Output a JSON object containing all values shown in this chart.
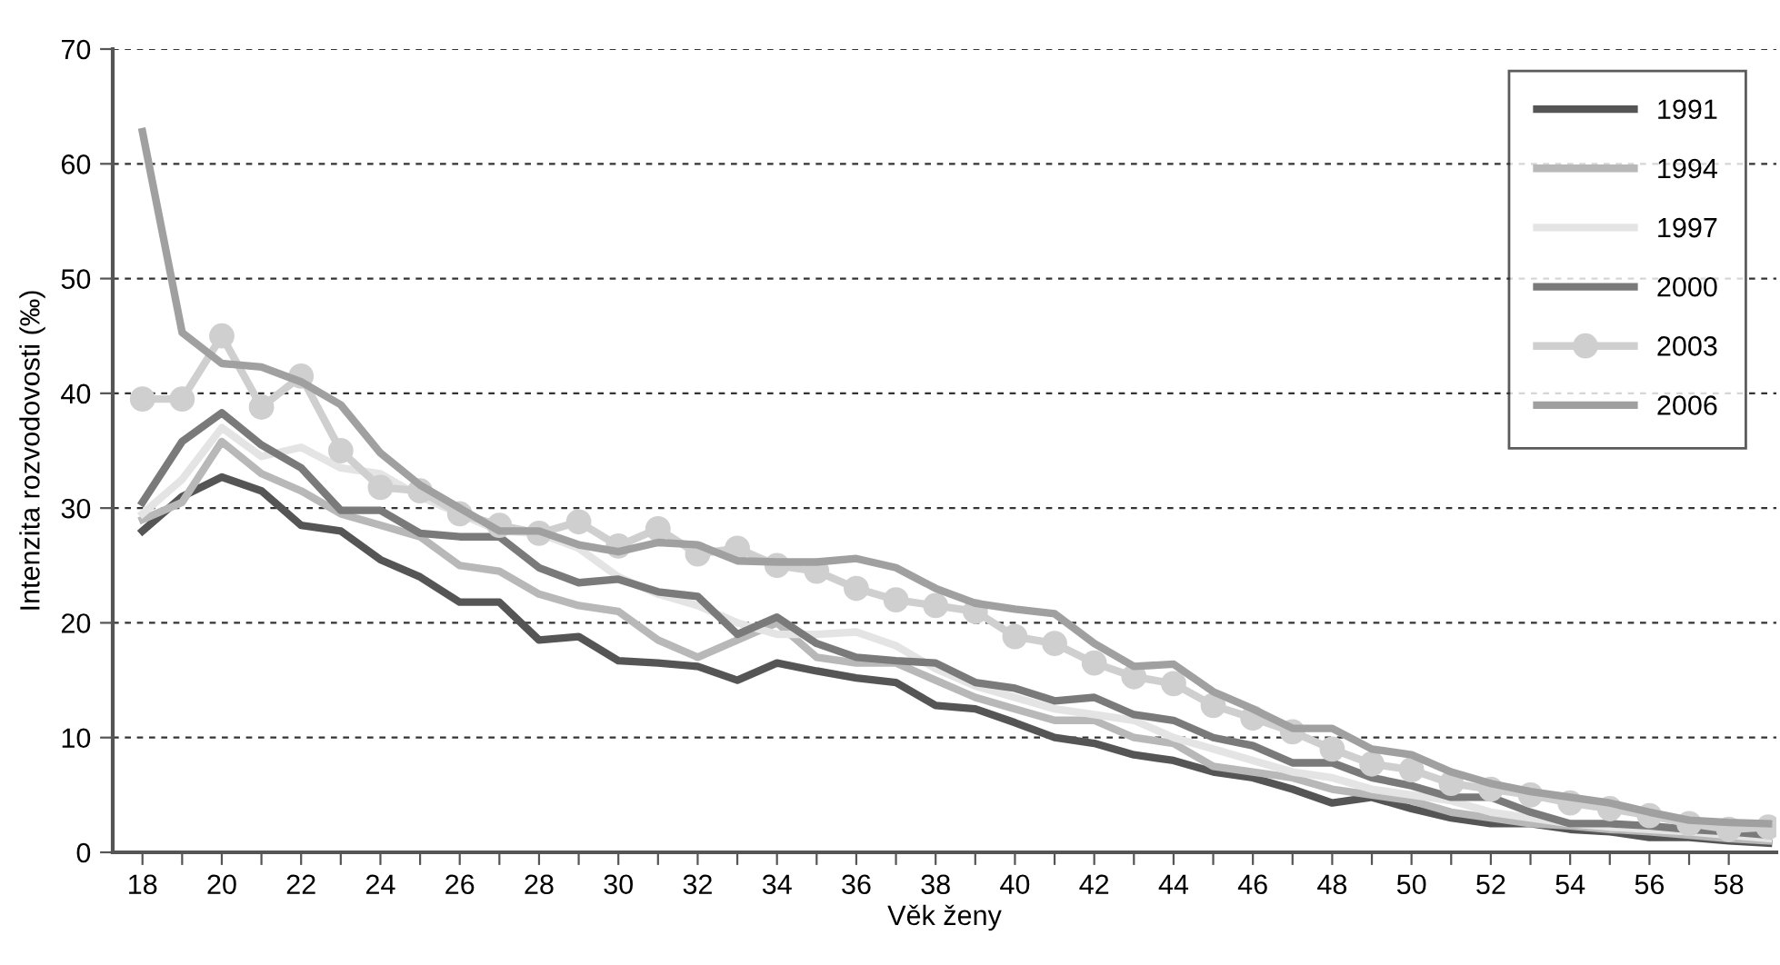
{
  "chart_data": {
    "type": "line",
    "xlabel": "Věk ženy",
    "ylabel": "Intenzita rozvodovosti (‰)",
    "x": [
      18,
      19,
      20,
      21,
      22,
      23,
      24,
      25,
      26,
      27,
      28,
      29,
      30,
      31,
      32,
      33,
      34,
      35,
      36,
      37,
      38,
      39,
      40,
      41,
      42,
      43,
      44,
      45,
      46,
      47,
      48,
      49,
      50,
      51,
      52,
      53,
      54,
      55,
      56,
      57,
      58,
      59
    ],
    "series": [
      {
        "name": "1991",
        "color": "#555555",
        "values": [
          28,
          31,
          32.7,
          31.5,
          28.5,
          28,
          25.5,
          24,
          21.8,
          21.8,
          18.5,
          18.8,
          16.7,
          16.5,
          16.2,
          15,
          16.5,
          15.8,
          15.2,
          14.8,
          12.8,
          12.5,
          11.3,
          10,
          9.5,
          8.5,
          8,
          7,
          6.5,
          5.5,
          4.3,
          4.8,
          3.8,
          3,
          2.5,
          2.5,
          2,
          1.8,
          1.3,
          1.3,
          1,
          0.8
        ]
      },
      {
        "name": "1994",
        "color": "#b8b8b8",
        "values": [
          29,
          30.5,
          35.8,
          33,
          31.5,
          29.5,
          28.5,
          27.5,
          25,
          24.5,
          22.5,
          21.5,
          21,
          18.5,
          17,
          18.5,
          20,
          17,
          16.5,
          16.5,
          15,
          13.5,
          12.5,
          11.5,
          11.5,
          10,
          9.5,
          7.5,
          7,
          6.5,
          5.5,
          5,
          4.5,
          3.5,
          3,
          2.5,
          2.3,
          2,
          1.8,
          1.5,
          1.2,
          1
        ]
      },
      {
        "name": "1997",
        "color": "#e4e4e4",
        "values": [
          29.5,
          32.5,
          37,
          34.5,
          35.3,
          33.5,
          33,
          31,
          29.5,
          28,
          27.8,
          26.5,
          24,
          22.5,
          21.5,
          20,
          19,
          19,
          19.2,
          18,
          16,
          14.5,
          13.5,
          12.5,
          12,
          11.5,
          10,
          9,
          8,
          7,
          6.5,
          5.5,
          5,
          4.5,
          3.5,
          3,
          2.5,
          2.2,
          2,
          1.8,
          1.5,
          1.2
        ]
      },
      {
        "name": "2000",
        "color": "#7a7a7a",
        "values": [
          30.5,
          35.8,
          38.3,
          35.5,
          33.5,
          29.8,
          29.8,
          27.8,
          27.5,
          27.5,
          24.8,
          23.5,
          23.8,
          22.7,
          22.3,
          19,
          20.5,
          18.2,
          17,
          16.7,
          16.5,
          14.8,
          14.3,
          13.2,
          13.5,
          12,
          11.5,
          10,
          9.3,
          7.8,
          7.8,
          6.5,
          5.8,
          4.8,
          4.8,
          3.5,
          2.5,
          2.5,
          2.3,
          2,
          1.8,
          1.5
        ]
      },
      {
        "name": "2003",
        "color": "#cfcfcf",
        "marker": "circle",
        "values": [
          39.5,
          39.5,
          45,
          38.8,
          41.5,
          35,
          31.8,
          31.5,
          29.5,
          28.5,
          27.8,
          28.8,
          26.7,
          28.2,
          26,
          26.5,
          25,
          24.5,
          23,
          22,
          21.5,
          21,
          18.8,
          18.2,
          16.5,
          15.3,
          14.7,
          12.8,
          11.7,
          10.5,
          9,
          7.7,
          7.2,
          6,
          5.5,
          5,
          4.3,
          3.8,
          3.2,
          2.5,
          2,
          2.2
        ]
      },
      {
        "name": "2006",
        "color": "#a0a0a0",
        "values": [
          62.8,
          45.3,
          42.6,
          42.3,
          41,
          39,
          34.8,
          32,
          30,
          28,
          28,
          26.8,
          26.2,
          27,
          26.8,
          25.4,
          25.3,
          25.3,
          25.6,
          24.8,
          23,
          21.7,
          21.2,
          20.8,
          18.2,
          16.2,
          16.4,
          14,
          12.5,
          10.8,
          10.8,
          9,
          8.5,
          7,
          6,
          5.3,
          4.8,
          4.3,
          3.5,
          2.8,
          2.6,
          2.5
        ]
      }
    ],
    "xlim": [
      17.25,
      59.2
    ],
    "ylim": [
      0,
      70
    ],
    "xticks": [
      18,
      {
        "value": 19,
        "label": null
      },
      20,
      {
        "value": 21,
        "label": null
      },
      22,
      {
        "value": 23,
        "label": null
      },
      24,
      {
        "value": 25,
        "label": null
      },
      26,
      {
        "value": 27,
        "label": null
      },
      28,
      {
        "value": 29,
        "label": null
      },
      30,
      {
        "value": 31,
        "label": null
      },
      32,
      {
        "value": 33,
        "label": null
      },
      34,
      {
        "value": 35,
        "label": null
      },
      36,
      {
        "value": 37,
        "label": null
      },
      38,
      {
        "value": 39,
        "label": null
      },
      40,
      {
        "value": 41,
        "label": null
      },
      42,
      {
        "value": 43,
        "label": null
      },
      44,
      {
        "value": 45,
        "label": null
      },
      46,
      {
        "value": 47,
        "label": null
      },
      48,
      {
        "value": 49,
        "label": null
      },
      50,
      {
        "value": 51,
        "label": null
      },
      52,
      {
        "value": 53,
        "label": null
      },
      54,
      {
        "value": 55,
        "label": null
      },
      56,
      {
        "value": 57,
        "label": null
      },
      58
    ],
    "yticks": [
      0,
      10,
      20,
      30,
      40,
      50,
      60,
      70
    ],
    "grid": "y",
    "legend": "top right",
    "marker": "none",
    "line_style": "solid"
  }
}
